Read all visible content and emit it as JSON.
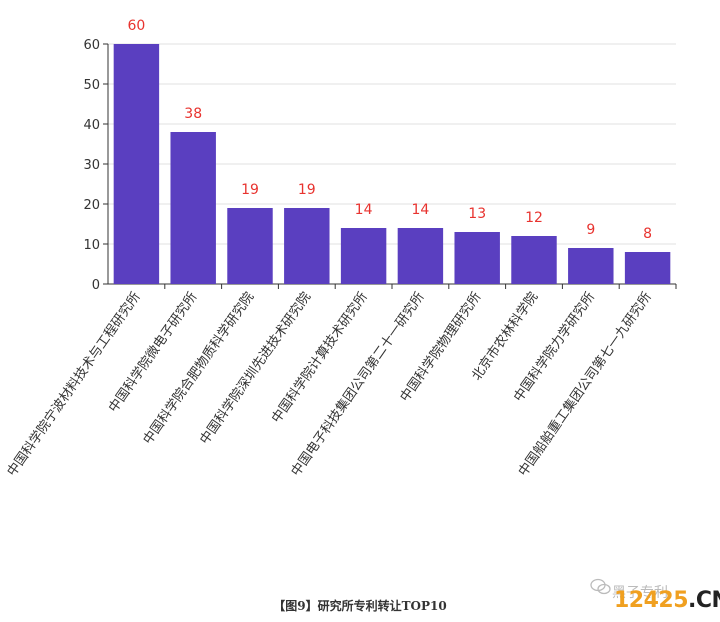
{
  "chart_data": {
    "type": "bar",
    "categories": [
      "中国科学院宁波材料技术与工程研究所",
      "中国科学院微电子研究所",
      "中国科学院合肥物质科学研究院",
      "中国科学院深圳先进技术研究院",
      "中国科学院计算技术研究所",
      "中国电子科技集团公司第二十一研究所",
      "中国科学院物理研究所",
      "北京市农林科学院",
      "中国科学院力学研究所",
      "中国船舶重工集团公司第七一九研究所"
    ],
    "values": [
      60,
      38,
      19,
      19,
      14,
      14,
      13,
      12,
      9,
      8
    ],
    "ylim": [
      0,
      60
    ],
    "yticks": [
      0,
      10,
      20,
      30,
      40,
      50,
      60
    ],
    "bar_color": "#5a3fc0",
    "label_color": "#e8332f",
    "grid": true
  },
  "caption": "【图9】研究所专利转让TOP10",
  "watermark": {
    "text": "黑子专利",
    "brand_num": "12425",
    "brand_suffix": ".CN"
  }
}
